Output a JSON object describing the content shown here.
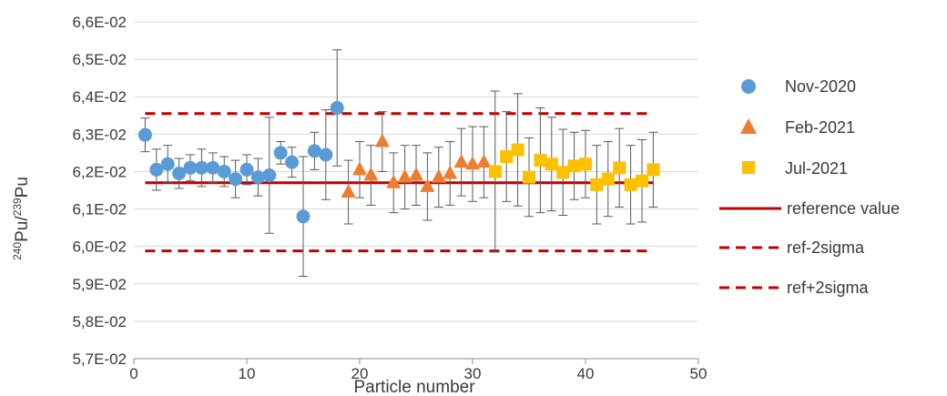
{
  "chart_data": {
    "type": "scatter",
    "xlabel": "Particle number",
    "ylabel": {
      "a": "240",
      "b": "Pu/",
      "c": "239",
      "d": "Pu"
    },
    "xlim": [
      0,
      50
    ],
    "ylim": [
      0.057,
      0.066
    ],
    "x_ticks": [
      0,
      10,
      20,
      30,
      40,
      50
    ],
    "x_tick_labels": [
      "0",
      "10",
      "20",
      "30",
      "40",
      "50"
    ],
    "y_ticks": [
      0.057,
      0.058,
      0.059,
      0.06,
      0.061,
      0.062,
      0.063,
      0.064,
      0.065,
      0.066
    ],
    "y_tick_labels": [
      "5,7E-02",
      "5,8E-02",
      "5,9E-02",
      "6,0E-02",
      "6,1E-02",
      "6,2E-02",
      "6,3E-02",
      "6,4E-02",
      "6,5E-02",
      "6,6E-02"
    ],
    "grid": "horizontal",
    "legend_position": "right",
    "series": [
      {
        "name": "Nov-2020",
        "marker": "circle",
        "color": "#5b9bd5",
        "x": [
          1,
          2,
          3,
          4,
          5,
          6,
          7,
          8,
          9,
          10,
          11,
          12,
          13,
          14,
          15,
          16,
          17,
          18
        ],
        "y": [
          0.06298,
          0.06205,
          0.0622,
          0.06195,
          0.0621,
          0.0621,
          0.0621,
          0.062,
          0.0618,
          0.06205,
          0.06185,
          0.0619,
          0.0625,
          0.06225,
          0.0608,
          0.06255,
          0.06245,
          0.0637
        ],
        "err": [
          0.00045,
          0.00055,
          0.0005,
          0.0004,
          0.00035,
          0.0005,
          0.0004,
          0.0004,
          0.0005,
          0.0004,
          0.0005,
          0.00155,
          0.0003,
          0.0004,
          0.0016,
          0.0005,
          0.0012,
          0.00155
        ]
      },
      {
        "name": "Feb-2021",
        "marker": "triangle",
        "color": "#ed7d31",
        "x": [
          19,
          20,
          21,
          22,
          23,
          24,
          25,
          26,
          27,
          28,
          29,
          30,
          31
        ],
        "y": [
          0.06145,
          0.06205,
          0.0619,
          0.0628,
          0.0617,
          0.06185,
          0.0619,
          0.0616,
          0.06185,
          0.06195,
          0.06225,
          0.0622,
          0.06225
        ],
        "err": [
          0.00085,
          0.00075,
          0.0008,
          0.0008,
          0.0008,
          0.00085,
          0.0008,
          0.0009,
          0.0008,
          0.00085,
          0.0009,
          0.001,
          0.00095
        ]
      },
      {
        "name": "Jul-2021",
        "marker": "square",
        "color": "#ffc000",
        "x": [
          32,
          33,
          34,
          35,
          36,
          37,
          38,
          39,
          40,
          41,
          42,
          43,
          44,
          45,
          46
        ],
        "y": [
          0.062,
          0.0624,
          0.06258,
          0.06185,
          0.0623,
          0.0622,
          0.06198,
          0.06215,
          0.0622,
          0.06165,
          0.0618,
          0.0621,
          0.06165,
          0.06175,
          0.06205
        ],
        "err": [
          0.00215,
          0.0012,
          0.0015,
          0.00105,
          0.0014,
          0.00125,
          0.00115,
          0.0009,
          0.0009,
          0.00105,
          0.001,
          0.00105,
          0.00105,
          0.0011,
          0.001
        ]
      }
    ],
    "reference_lines": [
      {
        "name": "reference value",
        "y": 0.0617,
        "style": "solid",
        "color": "#c00000",
        "x_range": [
          1,
          46
        ]
      },
      {
        "name": "ref-2sigma",
        "y": 0.05988,
        "style": "dashed",
        "color": "#c00000",
        "x_range": [
          1,
          46
        ]
      },
      {
        "name": "ref+2sigma",
        "y": 0.06355,
        "style": "dashed",
        "color": "#c00000",
        "x_range": [
          1,
          46
        ]
      }
    ]
  }
}
